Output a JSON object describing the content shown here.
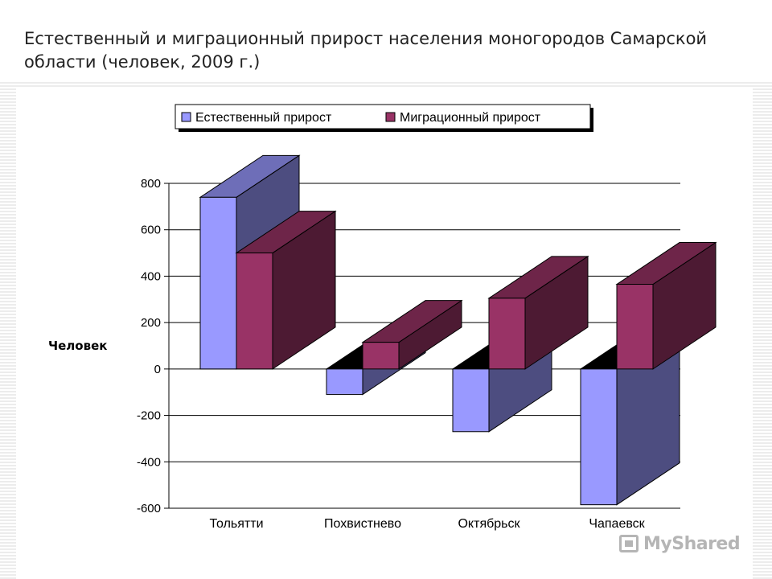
{
  "slide_title": "Естественный и миграционный прирост населения моногородов Самарской области (человек, 2009 г.)",
  "watermark": "MyShared",
  "chart_data": {
    "type": "bar",
    "subtype": "3d-clustered-column",
    "categories": [
      "Тольятти",
      "Похвистнево",
      "Октябрьск",
      "Чапаевск"
    ],
    "series": [
      {
        "name": "Естественный прирост",
        "color": "#9999ff",
        "values": [
          740,
          -110,
          -270,
          -585
        ]
      },
      {
        "name": "Миграционный прирост",
        "color": "#993366",
        "values": [
          500,
          115,
          305,
          365
        ]
      }
    ],
    "ylabel": "Человек",
    "xlabel": "",
    "ylim": [
      -600,
      800
    ],
    "yticks": [
      800,
      600,
      400,
      200,
      0,
      -200,
      -400,
      -600
    ],
    "grid": true,
    "legend_position": "top"
  }
}
